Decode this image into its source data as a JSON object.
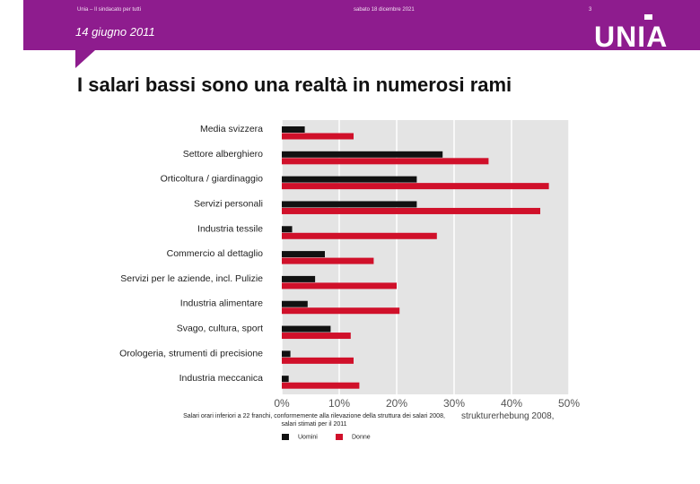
{
  "header": {
    "left_text": "Unia – Il sindacato per tutti",
    "center_text": "sabato 18 dicembre 2021",
    "page_number": "3",
    "date": "14 giugno 2011",
    "logo_text": "UNIA"
  },
  "slide": {
    "title": "I salari bassi sono una realtà in numerosi rami"
  },
  "chart_data": {
    "type": "bar",
    "orientation": "horizontal",
    "categories": [
      "Media svizzera",
      "Settore alberghiero",
      "Orticoltura / giardinaggio",
      "Servizi personali",
      "Industria tessile",
      "Commercio al dettaglio",
      "Servizi per le aziende, incl. Pulizie",
      "Industria alimentare",
      "Svago, cultura, sport",
      "Orologeria, strumenti di precisione",
      "Industria meccanica"
    ],
    "series": [
      {
        "name": "Uomini",
        "color": "#111111",
        "values": [
          4,
          28,
          23.5,
          23.5,
          1.8,
          7.5,
          5.8,
          4.5,
          8.5,
          1.5,
          1.2
        ]
      },
      {
        "name": "Donne",
        "color": "#d0102a",
        "values": [
          12.5,
          36,
          46.5,
          45,
          27,
          16,
          20,
          20.5,
          12,
          12.5,
          13.5
        ]
      }
    ],
    "xlim": [
      0,
      50
    ],
    "ticks": [
      "0%",
      "10%",
      "20%",
      "30%",
      "40%",
      "50%"
    ],
    "grid": true,
    "legend_position": "bottom",
    "footnote": "Salari orari inferiori a 22 franchi, conformemente alla rilevazione della struttura dei salari 2008, salari stimati per il 2011",
    "source": "strukturerhebung 2008,"
  }
}
